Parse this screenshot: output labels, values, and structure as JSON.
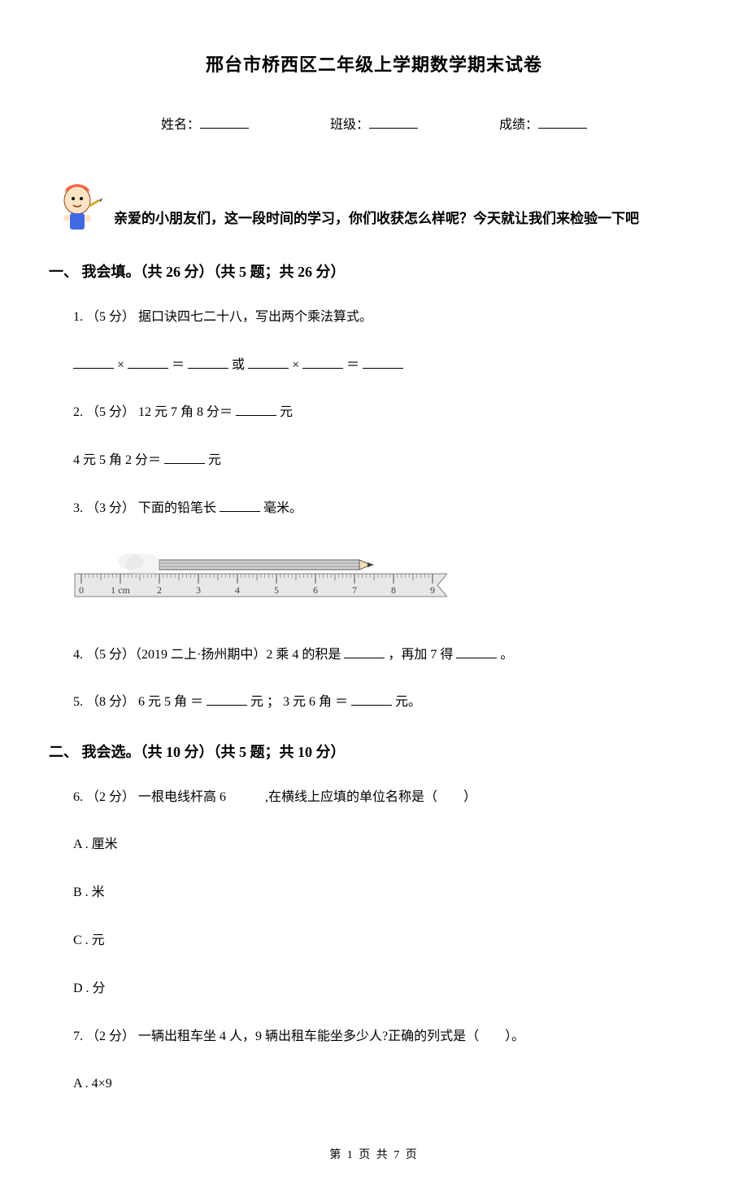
{
  "title": "邢台市桥西区二年级上学期数学期末试卷",
  "info": {
    "name_label": "姓名：",
    "class_label": "班级：",
    "score_label": "成绩："
  },
  "intro": "亲爱的小朋友们，这一段时间的学习，你们收获怎么样呢？今天就让我们来检验一下吧",
  "section1": {
    "header": "一、 我会填。（共 26 分）（共 5 题；共 26 分）",
    "q1": {
      "prefix": "1. （5 分） 据口诀四七二十八，写出两个乘法算式。",
      "eq_mult": "×",
      "eq_eq": "＝",
      "eq_or": "或"
    },
    "q2": {
      "line1_prefix": "2. （5 分） 12 元 7 角 8 分＝",
      "line1_suffix": "元",
      "line2_prefix": "4 元 5 角 2 分＝",
      "line2_suffix": "元"
    },
    "q3": {
      "prefix": "3. （3 分） 下面的铅笔长",
      "suffix": "毫米。"
    },
    "q4": {
      "prefix": "4. （5 分）（2019 二上·扬州期中）2 乘 4 的积是",
      "mid": "，再加 7 得",
      "suffix": "。"
    },
    "q5": {
      "prefix": "5. （8 分） 6 元 5 角 ＝",
      "mid": " 元 ； 3 元 6 角 ＝",
      "suffix": " 元。"
    }
  },
  "section2": {
    "header": "二、 我会选。（共 10 分）（共 5 题；共 10 分）",
    "q6": {
      "text": "6. （2 分） 一根电线杆高 6　　　,在横线上应填的单位名称是（　　）",
      "optA": "A . 厘米",
      "optB": "B . 米",
      "optC": "C . 元",
      "optD": "D . 分"
    },
    "q7": {
      "text": "7. （2 分） 一辆出租车坐 4 人，9 辆出租车能坐多少人?正确的列式是（　　）。",
      "optA": "A . 4×9"
    }
  },
  "ruler": {
    "ticks": [
      "0",
      "1 cm",
      "2",
      "3",
      "4",
      "5",
      "6",
      "7",
      "8",
      "9"
    ],
    "pencil_start": 2,
    "pencil_end": 7.5,
    "ruler_color": "#e8e8e8",
    "tick_color": "#808080",
    "pencil_body_fill": "#d0d0d0",
    "pencil_body_stroke": "#606060",
    "pencil_tip_fill": "#404040",
    "font_size": 12
  },
  "mascot": {
    "body_color": "#f4a460",
    "face_color": "#ffe4c4",
    "hat_color": "#ff6347",
    "clothes_color": "#4169e1",
    "pencil_color": "#daa520"
  },
  "footer": "第 1 页 共 7 页"
}
